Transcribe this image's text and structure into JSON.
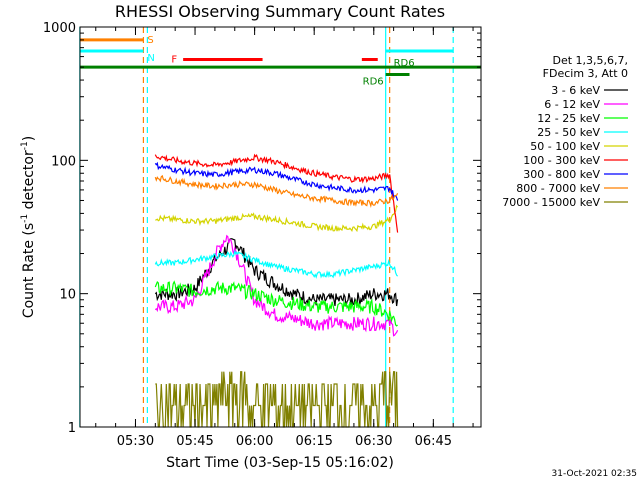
{
  "chart_data": {
    "type": "line",
    "title": "RHESSI Observing Summary Count Rates",
    "xlabel": "Start Time (03-Sep-15 05:16:02)",
    "ylabel": "Count Rate (s⁻¹ detector⁻¹)",
    "ylabel_main": "Count Rate (s",
    "ylabel_mid": " detector",
    "ylabel_end": ")",
    "ylabel_sup": "-1",
    "y_scale": "log",
    "ylim": [
      1,
      1000
    ],
    "xlim": [
      "05:16",
      "06:57"
    ],
    "x_ticks": [
      "05:30",
      "05:45",
      "06:00",
      "06:15",
      "06:30",
      "06:45"
    ],
    "y_ticks": [
      "1",
      "10",
      "100",
      "1000"
    ],
    "footer_date": "31-Oct-2021 02:35",
    "legend": {
      "header": [
        "Det 1,3,5,6,7,",
        "FDecim 3, Att 0"
      ],
      "entries": [
        {
          "label": "3 - 6 keV",
          "color": "#000000"
        },
        {
          "label": "6 - 12 keV",
          "color": "#ff00ff"
        },
        {
          "label": "12 - 25 keV",
          "color": "#00ff00"
        },
        {
          "label": "25 - 50 keV",
          "color": "#00ffff"
        },
        {
          "label": "50 - 100 keV",
          "color": "#d4d400"
        },
        {
          "label": "100 - 300 keV",
          "color": "#ff0000"
        },
        {
          "label": "300 - 800 keV",
          "color": "#0000ff"
        },
        {
          "label": "800 - 7000 keV",
          "color": "#ff8000"
        },
        {
          "label": "7000 - 15000 keV",
          "color": "#808000"
        }
      ]
    },
    "flags": [
      {
        "label": "S",
        "color": "#ff8000",
        "segments": [
          [
            "05:16",
            "05:32"
          ]
        ],
        "y": 800
      },
      {
        "label": "N",
        "color": "#00ffff",
        "segments": [
          [
            "05:16",
            "05:32"
          ],
          [
            "06:33",
            "06:50"
          ]
        ],
        "y": 660
      },
      {
        "label": "F",
        "color": "#ff0000",
        "segments": [
          [
            "05:42",
            "06:02"
          ],
          [
            "06:27",
            "06:31"
          ]
        ],
        "y": 570
      },
      {
        "label": "RD6",
        "color": "#008000",
        "segments": [
          [
            "05:16",
            "06:57"
          ]
        ],
        "y": 500
      },
      {
        "label": "RD6",
        "color": "#008000",
        "segments": [
          [
            "06:33",
            "06:39"
          ]
        ],
        "y": 440
      }
    ],
    "vlines": [
      {
        "time": "05:16",
        "color": "#00ffff",
        "style": "solid"
      },
      {
        "time": "05:32",
        "color": "#ff8000",
        "style": "dashed"
      },
      {
        "time": "05:33",
        "color": "#00ffff",
        "style": "dashed"
      },
      {
        "time": "06:33",
        "color": "#00ffff",
        "style": "solid"
      },
      {
        "time": "06:34",
        "color": "#ff8000",
        "style": "dashed"
      },
      {
        "time": "06:50",
        "color": "#00ffff",
        "style": "dashed"
      }
    ],
    "series": [
      {
        "name": "3 - 6 keV",
        "color": "#000000",
        "x": [
          "05:35",
          "05:40",
          "05:45",
          "05:50",
          "05:55",
          "06:00",
          "06:05",
          "06:10",
          "06:15",
          "06:20",
          "06:25",
          "06:30",
          "06:34",
          "06:36"
        ],
        "y": [
          10,
          10,
          11,
          18,
          25,
          15,
          12,
          10,
          9,
          9,
          9,
          10,
          10,
          9
        ]
      },
      {
        "name": "6 - 12 keV",
        "color": "#ff00ff",
        "x": [
          "05:35",
          "05:40",
          "05:45",
          "05:48",
          "05:51",
          "05:53",
          "05:55",
          "05:58",
          "06:00",
          "06:05",
          "06:10",
          "06:15",
          "06:20",
          "06:25",
          "06:30",
          "06:34",
          "06:36"
        ],
        "y": [
          8,
          8,
          9,
          14,
          22,
          27,
          22,
          13,
          9,
          7,
          6.5,
          6,
          6,
          6,
          6,
          6,
          5
        ]
      },
      {
        "name": "12 - 25 keV",
        "color": "#00ff00",
        "x": [
          "05:35",
          "05:40",
          "05:45",
          "05:50",
          "05:55",
          "06:00",
          "06:05",
          "06:10",
          "06:15",
          "06:20",
          "06:25",
          "06:30",
          "06:34",
          "06:36"
        ],
        "y": [
          11,
          11,
          10.5,
          11,
          11,
          10,
          9,
          8.5,
          8,
          8,
          8,
          8,
          7,
          6
        ]
      },
      {
        "name": "25 - 50 keV",
        "color": "#00ffff",
        "x": [
          "05:35",
          "05:40",
          "05:45",
          "05:50",
          "05:55",
          "06:00",
          "06:05",
          "06:10",
          "06:15",
          "06:20",
          "06:25",
          "06:30",
          "06:34",
          "06:36"
        ],
        "y": [
          17,
          17,
          18,
          19,
          20,
          18,
          16,
          15,
          14,
          14,
          15,
          16,
          17,
          14
        ]
      },
      {
        "name": "50 - 100 keV",
        "color": "#d4d400",
        "x": [
          "05:35",
          "05:40",
          "05:45",
          "05:50",
          "05:55",
          "06:00",
          "06:05",
          "06:10",
          "06:15",
          "06:20",
          "06:25",
          "06:30",
          "06:34",
          "06:36"
        ],
        "y": [
          37,
          36,
          35,
          35,
          37,
          38,
          36,
          34,
          32,
          31,
          31,
          32,
          36,
          45
        ]
      },
      {
        "name": "100 - 300 keV",
        "color": "#ff0000",
        "x": [
          "05:35",
          "05:40",
          "05:45",
          "05:50",
          "05:55",
          "06:00",
          "06:05",
          "06:10",
          "06:15",
          "06:20",
          "06:25",
          "06:30",
          "06:34",
          "06:36"
        ],
        "y": [
          108,
          100,
          95,
          92,
          98,
          105,
          98,
          88,
          80,
          75,
          72,
          73,
          78,
          30
        ]
      },
      {
        "name": "300 - 800 keV",
        "color": "#0000ff",
        "x": [
          "05:35",
          "05:40",
          "05:45",
          "05:50",
          "05:55",
          "06:00",
          "06:05",
          "06:10",
          "06:15",
          "06:20",
          "06:25",
          "06:30",
          "06:34",
          "06:36"
        ],
        "y": [
          92,
          85,
          80,
          78,
          82,
          85,
          80,
          72,
          66,
          62,
          60,
          60,
          62,
          50
        ]
      },
      {
        "name": "800 - 7000 keV",
        "color": "#ff8000",
        "x": [
          "05:35",
          "05:40",
          "05:45",
          "05:50",
          "05:55",
          "06:00",
          "06:05",
          "06:10",
          "06:15",
          "06:20",
          "06:25",
          "06:30",
          "06:34",
          "06:36"
        ],
        "y": [
          75,
          70,
          66,
          64,
          66,
          66,
          60,
          55,
          52,
          50,
          48,
          48,
          50,
          55
        ]
      },
      {
        "name": "7000 - 15000 keV",
        "color": "#808000",
        "x": [
          "05:35",
          "05:40",
          "05:45",
          "05:50",
          "05:52",
          "05:55",
          "06:00",
          "06:05",
          "06:10",
          "06:15",
          "06:20",
          "06:25",
          "06:30",
          "06:34",
          "06:36"
        ],
        "y": [
          1.7,
          1.5,
          1.6,
          1.6,
          2.8,
          2.5,
          1.6,
          1.5,
          1.4,
          1.4,
          1.3,
          1.4,
          1.5,
          2.6,
          2.0
        ]
      }
    ]
  }
}
